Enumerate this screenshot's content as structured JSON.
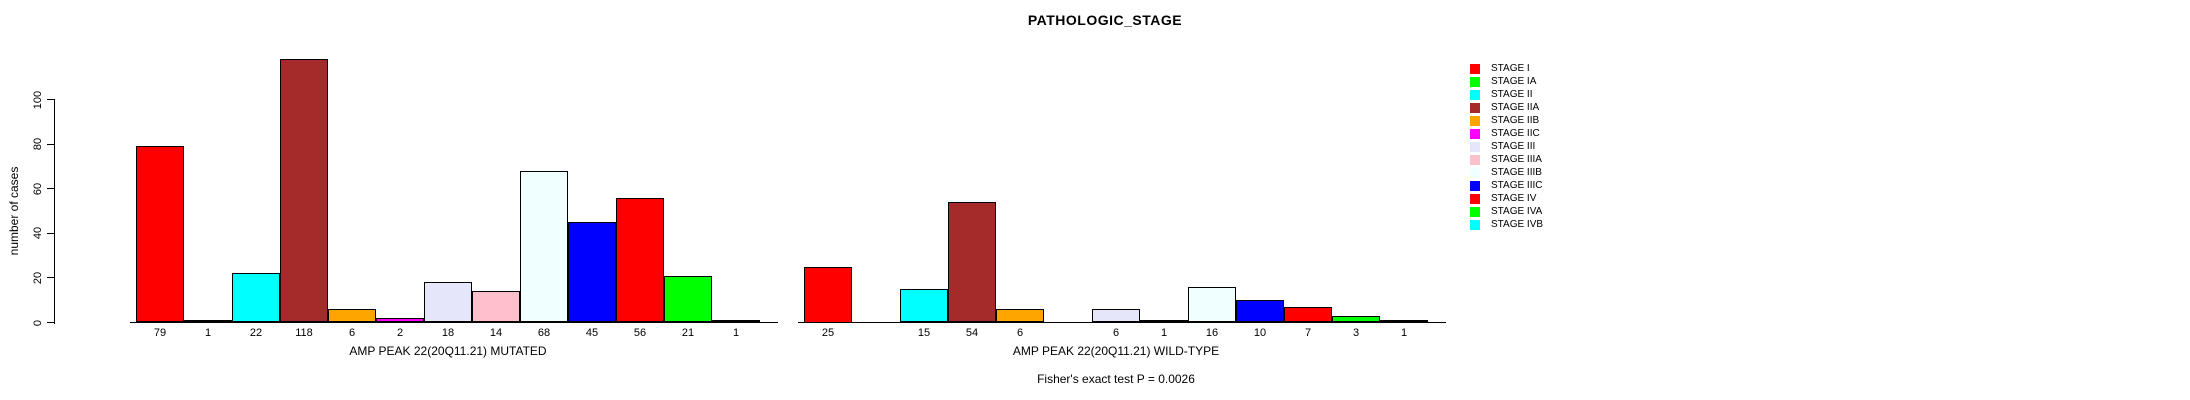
{
  "figure": {
    "background": "#ffffff"
  },
  "chart_data": {
    "type": "bar",
    "title": "PATHOLOGIC_STAGE",
    "ylabel": "number of cases",
    "yticks": [
      0,
      20,
      40,
      60,
      80,
      100
    ],
    "ylim": [
      0,
      118
    ],
    "grid": false,
    "legend_position": "right",
    "categories": [
      "STAGE I",
      "STAGE IA",
      "STAGE II",
      "STAGE IIA",
      "STAGE IIB",
      "STAGE IIC",
      "STAGE III",
      "STAGE IIIA",
      "STAGE IIIB",
      "STAGE IIIC",
      "STAGE IV",
      "STAGE IVA",
      "STAGE IVB"
    ],
    "colors": [
      "#FF0000",
      "#00FF00",
      "#00FFFF",
      "#A52A2A",
      "#FFA500",
      "#FF00FF",
      "#E6E6FA",
      "#FFC0CB",
      "#F0FFFF",
      "#0000FF",
      "#FF0000",
      "#00FF00",
      "#00FFFF"
    ],
    "groups": [
      {
        "xlabel": "AMP PEAK 22(20Q11.21) MUTATED",
        "values": [
          79,
          1,
          22,
          118,
          6,
          2,
          18,
          14,
          68,
          45,
          56,
          21,
          1
        ]
      },
      {
        "xlabel": "AMP PEAK 22(20Q11.21) WILD-TYPE",
        "values": [
          25,
          0,
          15,
          54,
          6,
          0,
          6,
          1,
          16,
          10,
          7,
          3,
          1
        ]
      }
    ],
    "annotation": "Fisher's exact test P = 0.0026"
  },
  "legend": {
    "entries": [
      {
        "label": "STAGE I",
        "color": "#FF0000"
      },
      {
        "label": "STAGE IA",
        "color": "#00FF00"
      },
      {
        "label": "STAGE II",
        "color": "#00FFFF"
      },
      {
        "label": "STAGE IIA",
        "color": "#A52A2A"
      },
      {
        "label": "STAGE IIB",
        "color": "#FFA500"
      },
      {
        "label": "STAGE IIC",
        "color": "#FF00FF"
      },
      {
        "label": "STAGE III",
        "color": "#E6E6FA"
      },
      {
        "label": "STAGE IIIA",
        "color": "#FFC0CB"
      },
      {
        "label": "STAGE IIIB",
        "color": "#F0FFFF"
      },
      {
        "label": "STAGE IIIC",
        "color": "#0000FF"
      },
      {
        "label": "STAGE IV",
        "color": "#FF0000"
      },
      {
        "label": "STAGE IVA",
        "color": "#00FF00"
      },
      {
        "label": "STAGE IVB",
        "color": "#00FFFF"
      }
    ]
  }
}
